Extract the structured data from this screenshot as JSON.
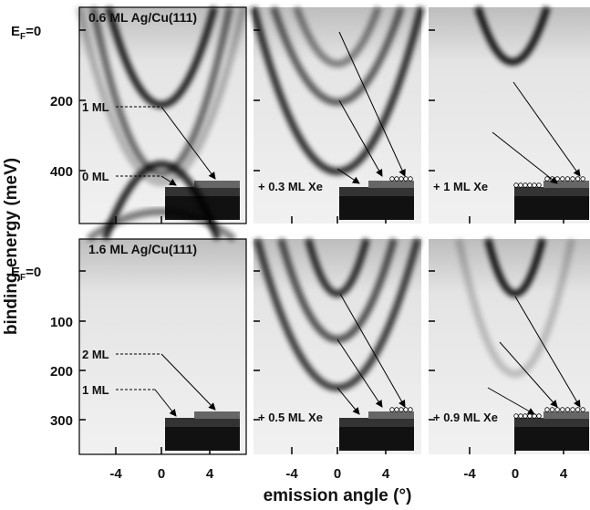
{
  "y_axis_label": "binding energy   (meV)",
  "x_axis_label": "emission angle   (°)",
  "x_ticks": [
    "-4",
    "0",
    "4"
  ],
  "rows": [
    {
      "y_ticks": [
        {
          "main": "E",
          "sub": "F",
          "rest": "=0"
        },
        "200",
        "400"
      ],
      "panels": [
        {
          "label": "0.6 ML Ag/Cu(111)",
          "annotations": [
            "1 ML",
            "0 ML"
          ]
        },
        {
          "label": "+ 0.3 ML Xe"
        },
        {
          "label": "+ 1 ML Xe"
        }
      ]
    },
    {
      "y_ticks": [
        {
          "main": "E",
          "sub": "F",
          "rest": "=0"
        },
        "100",
        "200",
        "300"
      ],
      "panels": [
        {
          "label": "1.6 ML Ag/Cu(111)",
          "annotations": [
            "2 ML",
            "1 ML"
          ]
        },
        {
          "label": "+ 0.5 ML Xe"
        },
        {
          "label": "+ 0.9 ML Xe"
        }
      ]
    }
  ]
}
